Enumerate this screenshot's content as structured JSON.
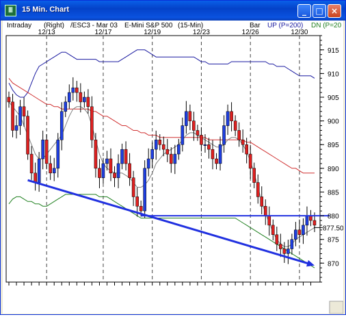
{
  "window": {
    "title": "15 Min. Chart",
    "icon": "chart-app-icon",
    "buttons": {
      "minimize": "_",
      "maximize": "□",
      "close": "×"
    }
  },
  "header": {
    "left": "Intraday",
    "right_label": "(Right)",
    "symbol": "/ESC3 - Mar 03",
    "name": "E-Mini S&P 500",
    "interval": "(15-Min)",
    "bar_label": "Bar",
    "up_label": "UP (P=200)",
    "dn_label": "DN (P=20"
  },
  "colors": {
    "up_bar": "#1f3fe0",
    "down_bar": "#e02020",
    "upper_band": "#1a1aa0",
    "lower_band": "#208020",
    "ma_long": "#d03030",
    "ma_short": "#808080",
    "trendline": "#2030e0",
    "support": "#2030e0"
  },
  "chart_data": {
    "type": "candlestick",
    "x_tick_labels": [
      "12/13",
      "12/17",
      "12/19",
      "12/23",
      "12/26",
      "12/30"
    ],
    "ylim": [
      866,
      918
    ],
    "y_ticks": [
      870,
      875,
      880,
      885,
      890,
      895,
      900,
      905,
      910,
      915
    ],
    "y_tick_labels": [
      "870",
      "875",
      "880",
      "885",
      "890",
      "895",
      "900",
      "905",
      "910",
      "915"
    ],
    "price_marker": "877.50",
    "support_level": 880,
    "trendline": {
      "from": {
        "bar": 5,
        "y": 887.5
      },
      "to": {
        "bar": 81,
        "y": 869.5
      }
    },
    "bars_count": 82,
    "close": [
      904,
      898,
      899,
      903,
      901,
      893,
      889,
      887,
      892,
      896,
      891,
      889,
      890,
      896,
      902,
      904,
      906,
      907,
      906,
      904,
      905,
      903,
      896,
      890,
      888,
      891,
      892,
      889,
      888,
      891,
      894,
      891,
      888,
      884,
      882,
      881,
      890,
      892,
      894,
      896,
      895,
      894,
      893,
      891,
      893,
      895,
      899,
      902,
      900,
      898,
      897,
      895,
      895,
      894,
      892,
      891,
      895,
      899,
      902,
      900,
      898,
      896,
      895,
      893,
      890,
      887,
      884,
      882,
      880,
      878,
      876,
      874,
      873,
      872,
      873,
      875,
      877,
      876,
      878,
      880,
      879,
      878
    ],
    "upper_band": [
      908,
      906.5,
      905.5,
      905,
      905,
      906,
      908,
      910,
      911.5,
      912,
      912.5,
      913,
      913.5,
      914,
      914.5,
      914.5,
      914,
      913.5,
      913,
      913,
      913,
      913,
      913,
      913,
      912.5,
      912.5,
      912.5,
      912.5,
      912.5,
      912.5,
      913,
      913.5,
      914,
      914.5,
      915,
      915,
      915,
      914.5,
      914,
      913.5,
      913.5,
      913.5,
      913.5,
      913.5,
      913.5,
      913.5,
      913.5,
      913.5,
      913.5,
      913.5,
      913,
      912.5,
      912.5,
      912,
      912,
      912,
      912,
      912,
      912,
      912.5,
      912.5,
      912.5,
      912.5,
      912.5,
      912.5,
      912.5,
      912.5,
      912.5,
      912.5,
      912,
      912,
      911.5,
      911.5,
      911.5,
      911,
      910.5,
      910,
      909.5,
      909.5,
      909.5,
      909.5,
      909
    ],
    "lower_band": [
      882.5,
      883.5,
      884,
      884,
      883.5,
      883,
      883,
      882.5,
      882.5,
      882,
      882,
      882.5,
      883,
      883.5,
      884,
      884.5,
      884.5,
      884.5,
      884.5,
      884.5,
      884.5,
      884.5,
      884.5,
      884.5,
      884,
      884,
      884,
      883.5,
      883,
      882.5,
      882,
      881.5,
      881,
      880.5,
      880,
      879.5,
      879.5,
      879.5,
      879.5,
      879.5,
      879.5,
      879.5,
      879.5,
      879.5,
      879.5,
      879.5,
      879.5,
      879.5,
      879.5,
      879.5,
      879.5,
      879.5,
      879.5,
      879.5,
      879.5,
      879.5,
      879.5,
      879.5,
      879.5,
      879.5,
      879.5,
      879,
      878.5,
      878,
      877.5,
      877,
      876.5,
      876,
      875.5,
      875,
      874.5,
      874,
      873.5,
      873,
      872.5,
      872,
      871.5,
      871,
      870.5,
      870,
      869.5,
      869
    ],
    "ma_long": [
      909,
      908,
      907.5,
      907,
      906.5,
      906,
      905.5,
      905,
      904.5,
      904,
      903.5,
      903.5,
      903,
      903,
      902.5,
      902.5,
      902.5,
      902.5,
      902.5,
      902.5,
      902.5,
      902.5,
      902,
      902,
      901.5,
      901,
      901,
      900.5,
      900,
      899.5,
      899,
      899,
      898.5,
      898,
      898,
      897.5,
      897.5,
      897,
      897,
      897,
      896.5,
      896.5,
      896.5,
      896.5,
      896.5,
      896.5,
      896.5,
      896.5,
      896.5,
      896.5,
      896.5,
      896.5,
      896.5,
      896,
      896,
      896,
      896,
      896,
      896,
      896,
      896,
      896,
      896,
      895.5,
      895.5,
      895,
      894.5,
      894,
      893.5,
      893,
      892.5,
      892,
      891.5,
      891,
      890.5,
      890,
      890,
      889.5,
      889,
      889,
      889,
      889
    ],
    "ma_short": [
      904,
      903,
      902,
      901,
      899,
      897,
      895,
      893,
      892,
      892,
      893,
      894,
      895,
      896,
      897,
      899,
      901,
      902.5,
      903,
      903,
      902.5,
      901.5,
      899,
      896,
      893,
      891,
      890,
      889.5,
      889,
      889,
      889,
      888.5,
      888,
      887,
      886,
      886,
      886.5,
      887.5,
      889,
      891,
      892,
      893,
      893.5,
      894,
      894.5,
      895,
      896,
      897,
      897.5,
      897.5,
      897,
      896.5,
      896,
      895.5,
      895,
      894.5,
      894.5,
      895,
      896,
      896.5,
      896.5,
      896,
      895,
      893.5,
      891.5,
      889,
      886,
      883,
      880.5,
      878.5,
      876.5,
      875,
      874,
      873.5,
      873.5,
      874,
      875,
      875.5,
      876,
      876.5,
      877,
      877.5
    ]
  }
}
